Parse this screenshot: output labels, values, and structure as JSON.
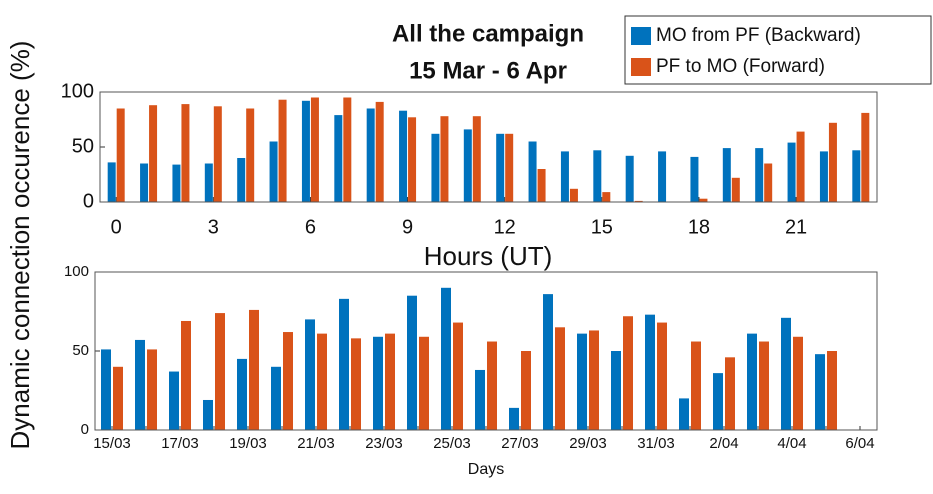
{
  "chart_data": [
    {
      "type": "bar",
      "title": "All the campaign",
      "subtitle": "15 Mar - 6 Apr",
      "ylabel": "Dynamic connection occurence (%)",
      "xlabel": "Hours (UT)",
      "x": [
        0,
        1,
        2,
        3,
        4,
        5,
        6,
        7,
        8,
        9,
        10,
        11,
        12,
        13,
        14,
        15,
        16,
        17,
        18,
        19,
        20,
        21,
        22,
        23
      ],
      "xlim": [
        -0.5,
        23.5
      ],
      "xticks": [
        0,
        3,
        6,
        9,
        12,
        15,
        18,
        21
      ],
      "ylim": [
        0,
        100
      ],
      "yticks": [
        0,
        50,
        100
      ],
      "series": [
        {
          "name": "MO from PF (Backward)",
          "color": "#0072bd",
          "values": [
            36,
            35,
            34,
            35,
            40,
            55,
            92,
            79,
            85,
            83,
            62,
            66,
            62,
            55,
            46,
            47,
            42,
            46,
            41,
            49,
            49,
            54,
            46,
            47
          ]
        },
        {
          "name": "PF to MO (Forward)",
          "color": "#d95319",
          "values": [
            85,
            88,
            89,
            87,
            85,
            93,
            95,
            95,
            91,
            77,
            78,
            78,
            62,
            30,
            12,
            9,
            1,
            0,
            3,
            22,
            35,
            64,
            72,
            81
          ]
        }
      ]
    },
    {
      "type": "bar",
      "xlabel": "Days",
      "categories": [
        "15/03",
        null,
        "17/03",
        null,
        "19/03",
        null,
        "21/03",
        null,
        "23/03",
        null,
        "25/03",
        null,
        "27/03",
        null,
        "29/03",
        null,
        "31/03",
        null,
        "2/04",
        null,
        "4/04",
        null,
        "6/04"
      ],
      "ylim": [
        0,
        100
      ],
      "yticks": [
        0,
        50,
        100
      ],
      "series": [
        {
          "color": "#0072bd",
          "values": [
            51,
            57,
            37,
            19,
            45,
            40,
            70,
            83,
            59,
            85,
            90,
            38,
            14,
            86,
            61,
            50,
            73,
            20,
            36,
            61,
            71,
            48,
            null
          ]
        },
        {
          "color": "#d95319",
          "values": [
            40,
            51,
            69,
            74,
            76,
            62,
            61,
            58,
            61,
            59,
            68,
            56,
            50,
            65,
            63,
            72,
            68,
            56,
            46,
            56,
            59,
            50,
            null
          ]
        }
      ]
    }
  ]
}
